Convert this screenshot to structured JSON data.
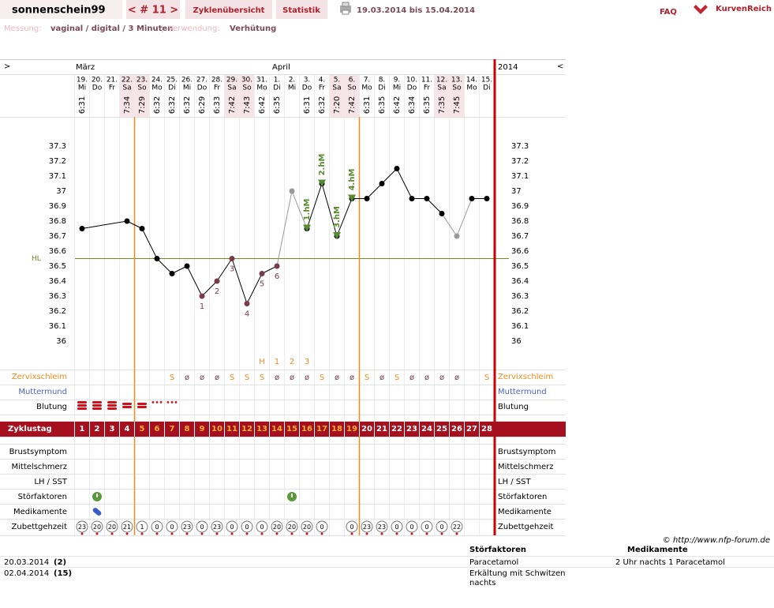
{
  "header": {
    "user": "sonnenschein99",
    "cycle_nav": "< # 11 >",
    "tabs": [
      "Zyklenübersicht",
      "Statistik"
    ],
    "date_range": "19.03.2014 bis 15.04.2014",
    "faq": "FAQ",
    "logo": "KurvenReich"
  },
  "settings": {
    "measurement_label": "Messung:",
    "measurement": "vaginal / digital / 3 Minuten",
    "separator": "|",
    "usage_label": "Verwendung:",
    "usage": "Verhütung"
  },
  "calendar": {
    "prev": ">",
    "next": "<",
    "months": [
      "März",
      "April"
    ],
    "year": "2014"
  },
  "days": [
    {
      "day": "19.",
      "weekday": "Mi",
      "time": "6:31"
    },
    {
      "day": "20.",
      "weekday": "Do",
      "time": null
    },
    {
      "day": "21.",
      "weekday": "Fr",
      "time": null
    },
    {
      "day": "22.",
      "weekday": "Sa",
      "time": "7:34"
    },
    {
      "day": "23.",
      "weekday": "So",
      "time": "7:29"
    },
    {
      "day": "24.",
      "weekday": "Mo",
      "time": "6:32"
    },
    {
      "day": "25.",
      "weekday": "Di",
      "time": "6:32"
    },
    {
      "day": "26.",
      "weekday": "Mi",
      "time": "6:32"
    },
    {
      "day": "27.",
      "weekday": "Do",
      "time": "6:29"
    },
    {
      "day": "28.",
      "weekday": "Fr",
      "time": "6:33"
    },
    {
      "day": "29.",
      "weekday": "Sa",
      "time": "7:42"
    },
    {
      "day": "30.",
      "weekday": "So",
      "time": "7:43"
    },
    {
      "day": "31.",
      "weekday": "Mo",
      "time": "6:42"
    },
    {
      "day": "1.",
      "weekday": "Di",
      "time": "6:35"
    },
    {
      "day": "2.",
      "weekday": "Mi",
      "time": null
    },
    {
      "day": "3.",
      "weekday": "Do",
      "time": "6:31"
    },
    {
      "day": "4.",
      "weekday": "Fr",
      "time": "6:32"
    },
    {
      "day": "5.",
      "weekday": "Sa",
      "time": "7:20"
    },
    {
      "day": "6.",
      "weekday": "So",
      "time": "7:42"
    },
    {
      "day": "7.",
      "weekday": "Mo",
      "time": "6:31"
    },
    {
      "day": "8.",
      "weekday": "Di",
      "time": "6:35"
    },
    {
      "day": "9.",
      "weekday": "Mi",
      "time": "6:42"
    },
    {
      "day": "10.",
      "weekday": "Do",
      "time": "6:34"
    },
    {
      "day": "11.",
      "weekday": "Fr",
      "time": "6:35"
    },
    {
      "day": "12.",
      "weekday": "Sa",
      "time": "7:35"
    },
    {
      "day": "13.",
      "weekday": "So",
      "time": "7:45"
    },
    {
      "day": "14.",
      "weekday": "Mo",
      "time": null
    },
    {
      "day": "15.",
      "weekday": "Di",
      "time": null
    }
  ],
  "chart_data": {
    "type": "line",
    "values": [
      36.75,
      null,
      null,
      36.8,
      36.75,
      36.55,
      36.45,
      36.5,
      36.3,
      36.4,
      36.55,
      36.25,
      36.45,
      36.5,
      37.0,
      36.75,
      37.05,
      36.7,
      36.95,
      36.95,
      37.05,
      37.15,
      36.95,
      36.95,
      36.85,
      36.7,
      36.95,
      36.95
    ],
    "point_colors": [
      "#000",
      null,
      null,
      "#000",
      "#000",
      "#000",
      "#000",
      "#000",
      "#7a3b4a",
      "#7a3b4a",
      "#7a3b4a",
      "#7a3b4a",
      "#7a3b4a",
      "#7a3b4a",
      "#999",
      "#000",
      "#000",
      "#000",
      "#000",
      "#000",
      "#000",
      "#000",
      "#000",
      "#000",
      "#000",
      "#999",
      "#000",
      "#000"
    ],
    "point_labels": [
      null,
      null,
      null,
      null,
      null,
      null,
      null,
      null,
      "1",
      "2",
      "3",
      "4",
      "5",
      "6",
      null,
      null,
      null,
      null,
      null,
      null,
      null,
      null,
      null,
      null,
      null,
      null,
      null,
      null
    ],
    "high_labels": [
      null,
      null,
      null,
      null,
      null,
      null,
      null,
      null,
      null,
      null,
      null,
      null,
      null,
      null,
      null,
      "1.hM",
      "2.hM",
      "3.hM",
      "4.hM",
      null,
      null,
      null,
      null,
      null,
      null,
      null,
      null,
      null
    ],
    "ylim": [
      35.8,
      37.5
    ],
    "yticks": [
      36,
      36.1,
      36.2,
      36.3,
      36.4,
      36.5,
      36.6,
      36.7,
      36.8,
      36.9,
      37,
      37.1,
      37.2,
      37.3
    ],
    "cover_line": {
      "label": "HL",
      "value": 36.55,
      "color": "#6b8e23"
    },
    "high_color": "#5a8a2e",
    "line_color": "#000",
    "peak_marks": [
      null,
      null,
      null,
      null,
      null,
      null,
      null,
      null,
      null,
      null,
      null,
      null,
      "H",
      "1",
      "2",
      "3",
      null,
      null,
      null,
      null,
      null,
      null,
      null,
      null,
      null,
      null,
      null,
      null
    ]
  },
  "rows": {
    "zervix": {
      "label": "Zervixschleim",
      "values": [
        null,
        null,
        null,
        null,
        null,
        null,
        "S",
        "ø",
        "ø",
        "ø",
        "S",
        "S",
        "S",
        "ø",
        "ø",
        "ø",
        "S",
        "ø",
        "ø",
        "S",
        "ø",
        "S",
        "ø",
        "ø",
        "ø",
        "ø",
        null,
        "S"
      ]
    },
    "muttermund": {
      "label": "Muttermund"
    },
    "blutung": {
      "label": "Blutung",
      "levels": [
        3,
        3,
        3,
        2,
        2,
        1,
        1,
        null,
        null,
        null,
        null,
        null,
        null,
        null,
        null,
        null,
        null,
        null,
        null,
        null,
        null,
        null,
        null,
        null,
        null,
        null,
        null,
        null
      ]
    },
    "cycle_day": {
      "label": "Zyklustag",
      "values": [
        1,
        2,
        3,
        4,
        5,
        6,
        7,
        8,
        9,
        10,
        11,
        12,
        13,
        14,
        15,
        16,
        17,
        18,
        19,
        20,
        21,
        22,
        23,
        24,
        25,
        26,
        27,
        28
      ]
    },
    "symptoms": [
      "Brustsymptom",
      "Mittelschmerz",
      "LH / SST",
      "Störfaktoren",
      "Medikamente",
      "Zubettgehzeit"
    ],
    "bedtime": [
      23,
      20,
      20,
      21,
      1,
      0,
      0,
      23,
      0,
      23,
      0,
      0,
      0,
      20,
      20,
      20,
      0,
      null,
      0,
      23,
      23,
      0,
      0,
      0,
      0,
      22,
      null,
      null
    ]
  },
  "copyright": "© http://www.nfp-forum.de",
  "notes": {
    "headers": [
      "Störfaktoren",
      "Medikamente"
    ],
    "rows": [
      [
        "20.03.2014",
        "(2)",
        "Paracetamol",
        "2 Uhr nachts 1 Paracetamol"
      ],
      [
        "02.04.2014",
        "(15)",
        "Erkältung mit Schwitzen nachts",
        null
      ]
    ]
  }
}
